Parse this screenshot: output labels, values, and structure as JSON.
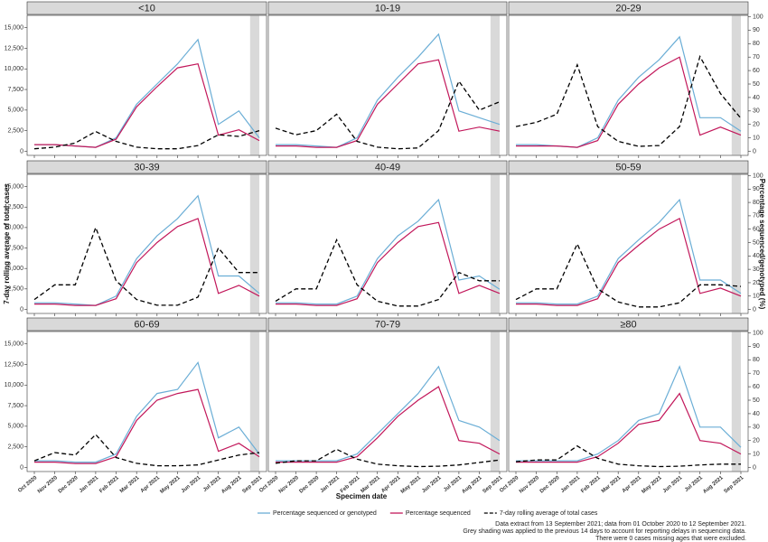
{
  "chart_data": {
    "type": "line",
    "x_label": "Specimen date",
    "y_label": "7-day rolling average of total cases",
    "y2_label": "Percentage sequenced/genotyped (%)",
    "categories": [
      "Oct 2020",
      "Nov 2020",
      "Dec 2020",
      "Jan 2021",
      "Feb 2021",
      "Mar 2021",
      "Apr 2021",
      "May 2021",
      "Jun 2021",
      "Jul 2021",
      "Aug 2021",
      "Sep 2021"
    ],
    "ylim": [
      -500,
      16500
    ],
    "yticks": [
      0,
      {
        "value": 2500,
        "label": "2,500"
      },
      {
        "value": 5000,
        "label": "5,000"
      },
      {
        "value": 7500,
        "label": "7,500"
      },
      {
        "value": 10000,
        "label": "10,000"
      },
      {
        "value": 12500,
        "label": "12,500"
      },
      {
        "value": 15000,
        "label": "15,000"
      }
    ],
    "y2lim": [
      -3,
      101
    ],
    "y2ticks": [
      0,
      10,
      20,
      30,
      40,
      50,
      60,
      70,
      80,
      90,
      100
    ],
    "series": [
      {
        "name": "Percentage sequenced or genotyped",
        "color": "#6baed6",
        "axis": "y2"
      },
      {
        "name": "Percentage sequenced",
        "color": "#c2185b",
        "axis": "y2"
      },
      {
        "name": "7-day rolling average of total cases",
        "color": "#000000",
        "axis": "y",
        "dashed": true
      }
    ],
    "facets": [
      {
        "title": "<10",
        "values": [
          [
            5,
            5,
            4,
            3,
            10,
            35,
            50,
            65,
            83,
            20,
            30,
            10
          ],
          [
            5,
            5,
            4,
            3,
            9,
            33,
            48,
            62,
            65,
            12,
            16,
            8
          ],
          [
            300,
            500,
            1000,
            2400,
            1200,
            500,
            300,
            300,
            700,
            2000,
            1800,
            2500
          ]
        ]
      },
      {
        "title": "10-19",
        "values": [
          [
            5,
            5,
            4,
            3,
            10,
            38,
            55,
            70,
            87,
            30,
            25,
            20
          ],
          [
            4,
            4,
            3,
            3,
            8,
            35,
            50,
            65,
            68,
            15,
            18,
            15
          ],
          [
            2800,
            2000,
            2500,
            4500,
            1200,
            500,
            300,
            400,
            2500,
            8500,
            5000,
            6000
          ]
        ]
      },
      {
        "title": "20-29",
        "values": [
          [
            5,
            5,
            4,
            3,
            10,
            38,
            55,
            68,
            85,
            25,
            25,
            15
          ],
          [
            4,
            4,
            4,
            3,
            8,
            35,
            50,
            62,
            70,
            12,
            18,
            12
          ],
          [
            3000,
            3500,
            4500,
            10500,
            3000,
            1200,
            600,
            700,
            3000,
            11500,
            7000,
            4000
          ]
        ]
      },
      {
        "title": "30-39",
        "values": [
          [
            5,
            5,
            4,
            3,
            10,
            38,
            55,
            68,
            85,
            25,
            25,
            12
          ],
          [
            4,
            4,
            3,
            3,
            8,
            35,
            50,
            62,
            68,
            12,
            18,
            10
          ],
          [
            1200,
            3000,
            3000,
            10000,
            3500,
            1200,
            500,
            500,
            1500,
            7500,
            4500,
            4500
          ]
        ]
      },
      {
        "title": "40-49",
        "values": [
          [
            5,
            5,
            4,
            4,
            10,
            38,
            55,
            66,
            82,
            22,
            25,
            15
          ],
          [
            4,
            4,
            3,
            3,
            8,
            35,
            50,
            62,
            65,
            12,
            18,
            12
          ],
          [
            1000,
            2500,
            2500,
            8500,
            3000,
            1000,
            400,
            400,
            1200,
            4500,
            3500,
            3500
          ]
        ]
      },
      {
        "title": "50-59",
        "values": [
          [
            5,
            5,
            4,
            4,
            10,
            38,
            52,
            65,
            82,
            22,
            22,
            12
          ],
          [
            4,
            4,
            3,
            3,
            8,
            35,
            48,
            60,
            68,
            12,
            16,
            10
          ],
          [
            1200,
            2500,
            2500,
            8000,
            2500,
            900,
            300,
            300,
            800,
            3000,
            3000,
            2800
          ]
        ]
      },
      {
        "title": "60-69",
        "values": [
          [
            5,
            5,
            4,
            4,
            10,
            38,
            55,
            58,
            78,
            22,
            30,
            10
          ],
          [
            4,
            4,
            3,
            3,
            8,
            35,
            50,
            55,
            58,
            12,
            18,
            8
          ],
          [
            800,
            1800,
            1500,
            4000,
            1200,
            500,
            200,
            200,
            300,
            900,
            1500,
            1800
          ]
        ]
      },
      {
        "title": "70-79",
        "values": [
          [
            5,
            5,
            5,
            5,
            10,
            25,
            40,
            55,
            75,
            35,
            30,
            20
          ],
          [
            4,
            4,
            4,
            4,
            8,
            22,
            38,
            50,
            60,
            20,
            18,
            10
          ],
          [
            500,
            800,
            800,
            2200,
            1000,
            400,
            200,
            100,
            150,
            300,
            600,
            900
          ]
        ]
      },
      {
        "title": "≥80",
        "values": [
          [
            5,
            5,
            5,
            5,
            10,
            20,
            35,
            40,
            75,
            30,
            30,
            15
          ],
          [
            4,
            4,
            4,
            4,
            8,
            18,
            32,
            35,
            55,
            20,
            18,
            10
          ],
          [
            700,
            900,
            900,
            2600,
            1100,
            400,
            200,
            100,
            150,
            300,
            400,
            400
          ]
        ]
      }
    ],
    "notes": [
      "Data extract from 13 September 2021; data from 01 October 2020 to 12 September 2021.",
      "Grey shading was applied to the previous 14 days to account for reporting delays in sequencing data.",
      "There were 0 cases missing ages that were excluded."
    ]
  }
}
